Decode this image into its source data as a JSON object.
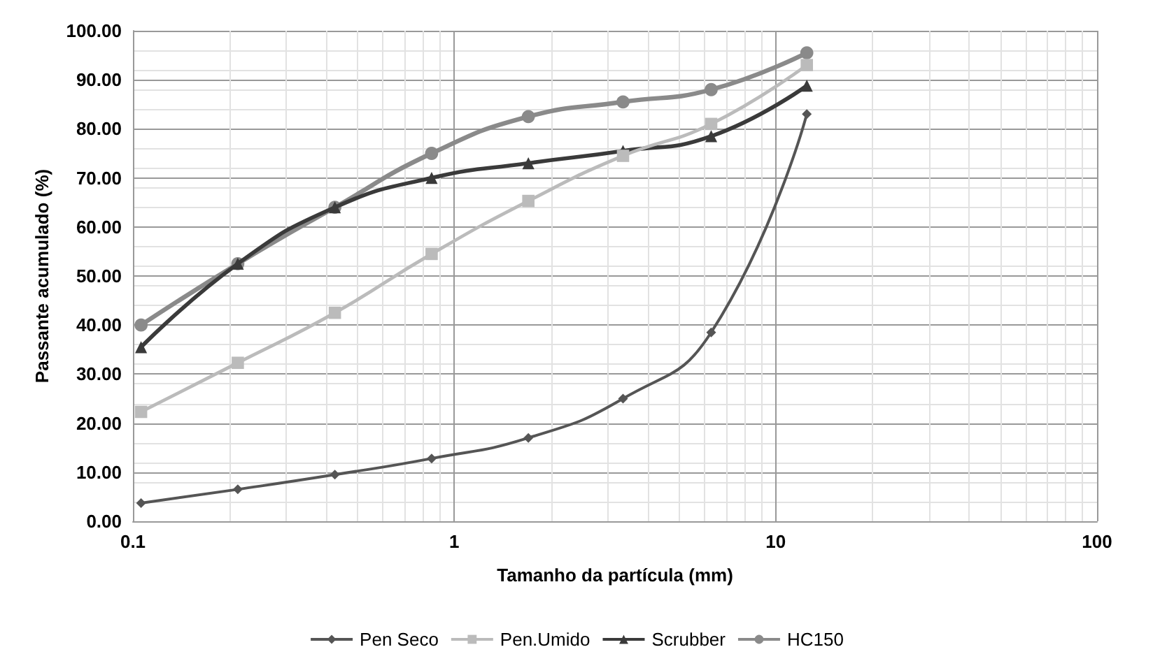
{
  "chart_data": {
    "type": "line",
    "xlabel": "Tamanho da partícula (mm)",
    "ylabel": "Passante acumulado (%)",
    "log": "x",
    "xlim": [
      0.1,
      100
    ],
    "xticks": [
      0.1,
      1,
      10,
      100
    ],
    "ylim": [
      0,
      100
    ],
    "yticks": [
      {
        "value": 0,
        "label": "0.00"
      },
      {
        "value": 10,
        "label": "10.00"
      },
      {
        "value": 20,
        "label": "20.00"
      },
      {
        "value": 30,
        "label": "30.00"
      },
      {
        "value": 40,
        "label": "40.00"
      },
      {
        "value": 50,
        "label": "50.00"
      },
      {
        "value": 60,
        "label": "60.00"
      },
      {
        "value": 70,
        "label": "70.00"
      },
      {
        "value": 80,
        "label": "80.00"
      },
      {
        "value": 90,
        "label": "90.00"
      },
      {
        "value": 100,
        "label": "100.00"
      }
    ],
    "grid": true,
    "legend": "bottom",
    "series": [
      {
        "name": "Pen Seco",
        "color": "#555555",
        "marker": "diamond",
        "x": [
          0.106,
          0.212,
          0.425,
          0.85,
          1.7,
          3.35,
          6.3,
          12.5
        ],
        "values": [
          3.7,
          6.5,
          9.5,
          12.8,
          17,
          25,
          38.5,
          83
        ]
      },
      {
        "name": "Pen.Umido",
        "color": "#bbbbbb",
        "marker": "square",
        "x": [
          0.106,
          0.212,
          0.425,
          0.85,
          1.7,
          3.35,
          6.3,
          12.5
        ],
        "values": [
          22.3,
          32.3,
          42.5,
          54.5,
          65.3,
          74.5,
          81,
          93
        ]
      },
      {
        "name": "Scrubber",
        "color": "#3a3a3a",
        "marker": "triangle",
        "x": [
          0.106,
          0.212,
          0.425,
          0.85,
          1.7,
          3.35,
          6.3,
          12.5
        ],
        "values": [
          35.5,
          52.5,
          64,
          70,
          73,
          75.5,
          78.5,
          88.8
        ]
      },
      {
        "name": "HC150",
        "color": "#8a8a8a",
        "marker": "circle",
        "x": [
          0.106,
          0.212,
          0.425,
          0.85,
          1.7,
          3.35,
          6.3,
          12.5
        ],
        "values": [
          40,
          52.5,
          64,
          75,
          82.5,
          85.5,
          88,
          95.5
        ]
      }
    ]
  }
}
